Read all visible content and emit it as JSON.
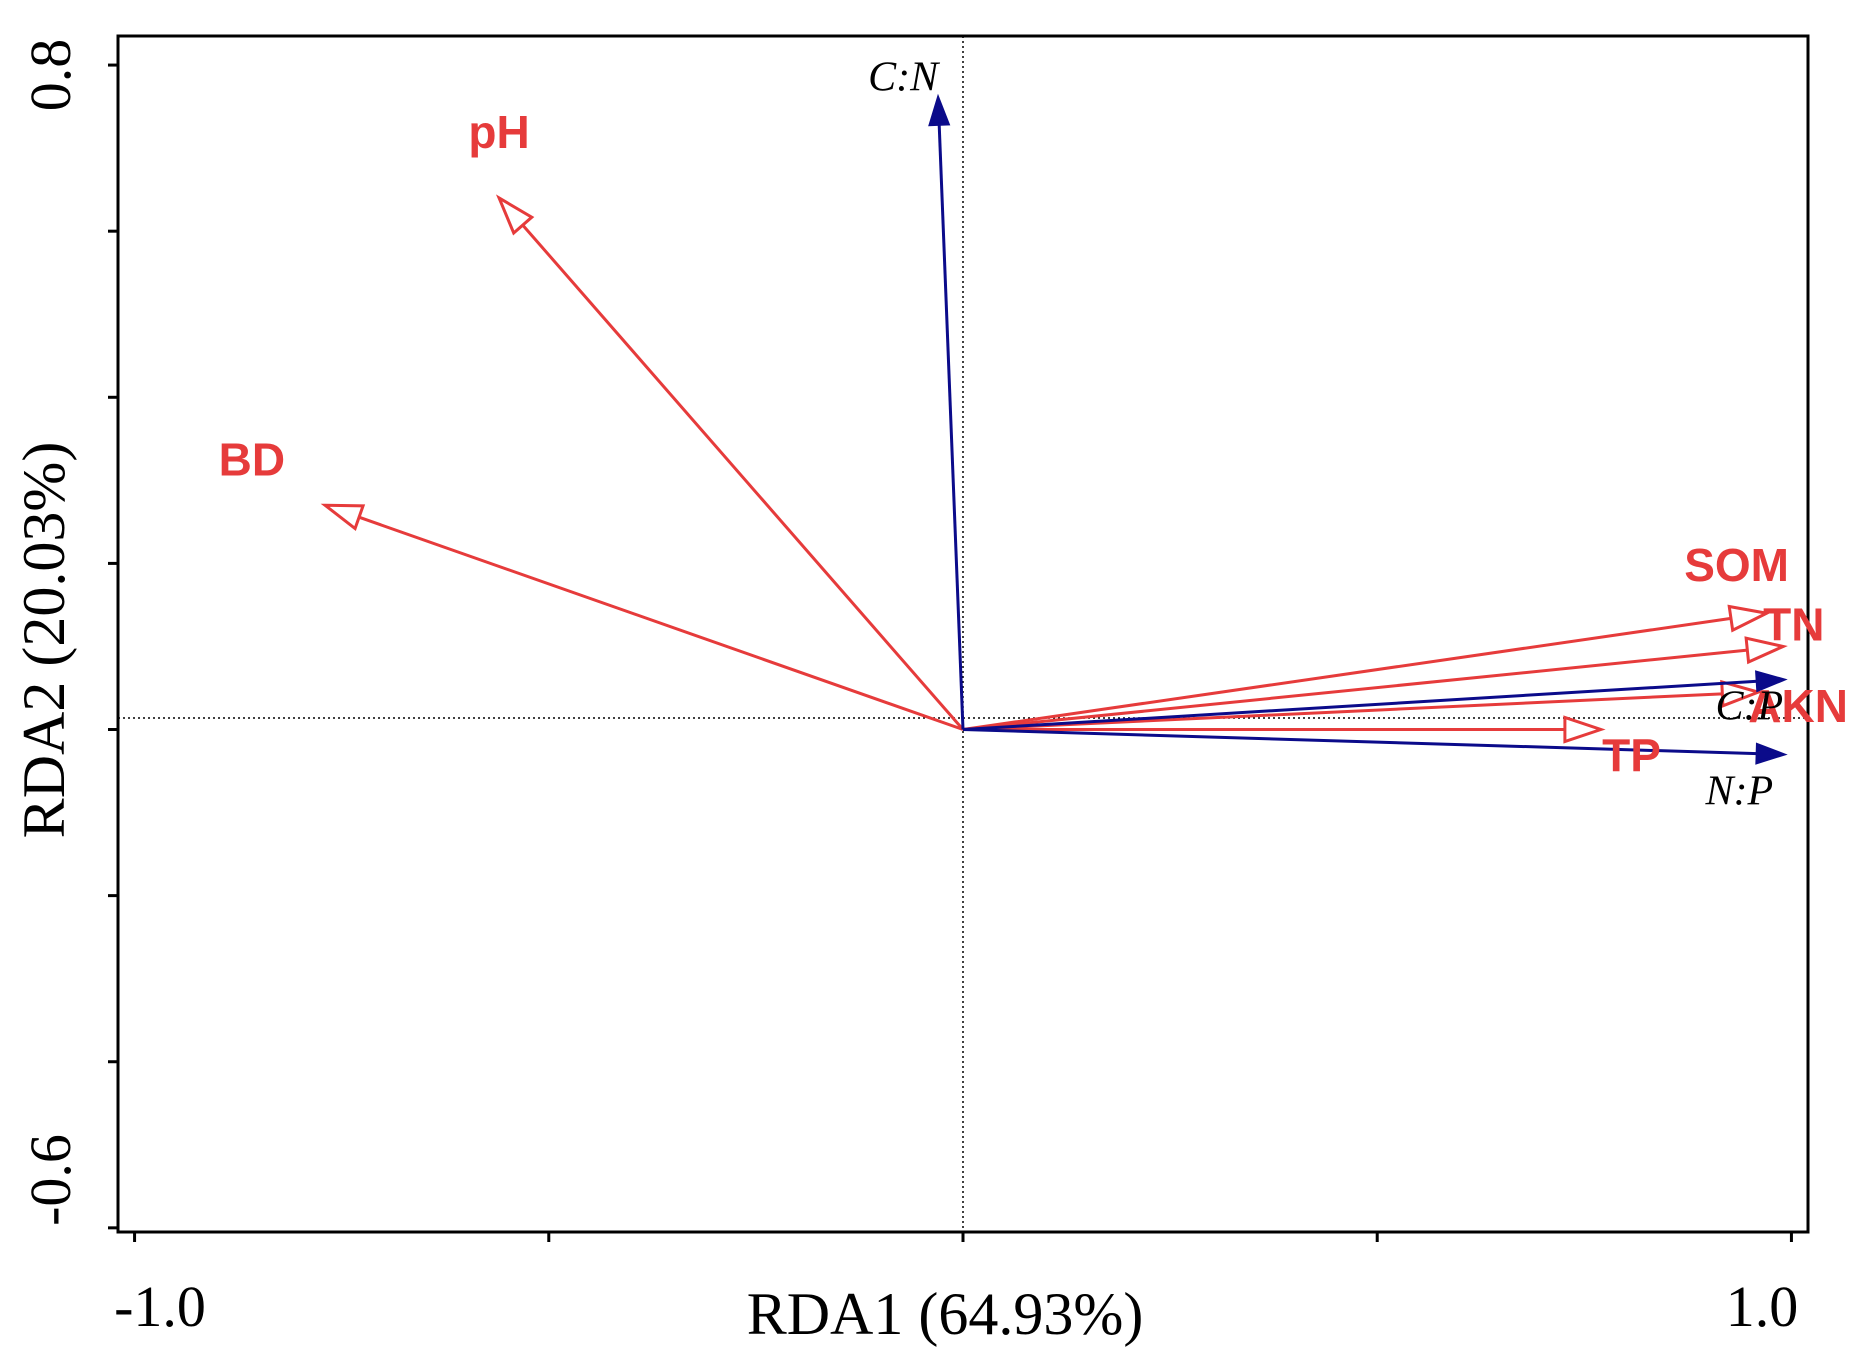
{
  "chart_data": {
    "type": "biplot",
    "xlabel": "RDA1 (64.93%)",
    "ylabel": "RDA2 (20.03%)",
    "xlim": [
      -1.02,
      1.02
    ],
    "ylim": [
      -0.605,
      0.835
    ],
    "x_tick_labels": [
      {
        "value": -1.0,
        "label": "-1.0"
      },
      {
        "value": 1.0,
        "label": "1.0"
      }
    ],
    "x_minor_ticks": [
      -1.0,
      -0.5,
      0.0,
      0.5,
      1.0
    ],
    "y_tick_labels": [
      {
        "value": 0.8,
        "label": "0.8"
      },
      {
        "value": -0.6,
        "label": "-0.6"
      }
    ],
    "y_minor_ticks": [
      0.8,
      0.6,
      0.4,
      0.2,
      0.0,
      -0.2,
      -0.4,
      -0.6
    ],
    "grid": false,
    "reference_lines": {
      "x": 0,
      "y": 0,
      "style": "dotted"
    },
    "colors": {
      "environment": "#e63b3b",
      "response": "#0b0b8a",
      "axis": "#000000"
    },
    "vectors": [
      {
        "label": "pH",
        "group": "environment",
        "x": -0.56,
        "y": 0.64
      },
      {
        "label": "BD",
        "group": "environment",
        "x": -0.77,
        "y": 0.27
      },
      {
        "label": "SOM",
        "group": "environment",
        "x": 0.97,
        "y": 0.14
      },
      {
        "label": "TN",
        "group": "environment",
        "x": 0.99,
        "y": 0.1
      },
      {
        "label": "AKN",
        "group": "environment",
        "x": 0.96,
        "y": 0.045
      },
      {
        "label": "TP",
        "group": "environment",
        "x": 0.77,
        "y": 0.0
      },
      {
        "label": "C:N",
        "group": "response",
        "x": -0.03,
        "y": 0.76
      },
      {
        "label": "C:P",
        "group": "response",
        "x": 0.99,
        "y": 0.06
      },
      {
        "label": "N:P",
        "group": "response",
        "x": 0.99,
        "y": -0.03
      }
    ]
  }
}
